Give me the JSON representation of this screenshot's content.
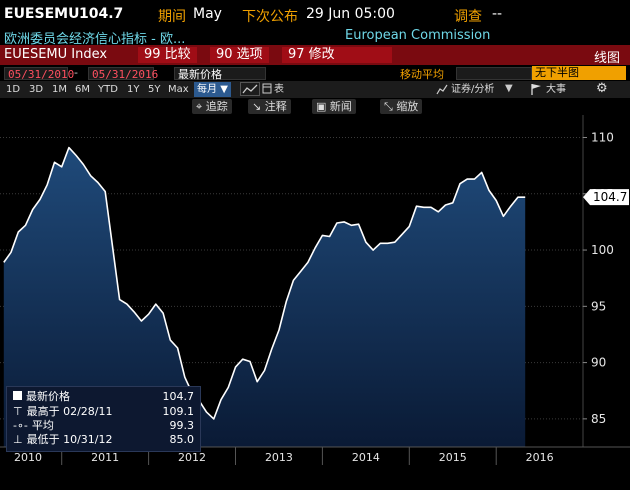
{
  "header": {
    "ticker": "EUESEMU",
    "last_value": "104.7",
    "period_label": "期间",
    "period_value": "May",
    "next_release_label": "下次公布",
    "next_release_value": "29 Jun 05:00",
    "survey_label": "调查",
    "survey_value": "--",
    "description": "欧洲委员会经济信心指标 - 欧...",
    "source": "European Commission"
  },
  "toolbar": {
    "security": "EUESEMU Index",
    "btn_compare": "99 比较",
    "btn_options": "90 选项",
    "btn_edit": "97 修改",
    "chart_type": "线图"
  },
  "range_bar": {
    "start_date": "05/31/2010",
    "end_date": "05/31/2016",
    "price_field": "最新价格",
    "moving_avg": "移动平均",
    "subchart": "无下半图"
  },
  "periods": [
    "1D",
    "3D",
    "1M",
    "6M",
    "YTD",
    "1Y",
    "5Y",
    "Max"
  ],
  "frequency": "每月",
  "table_icon_label": "表",
  "analysis_label": "证券/分析",
  "events_label": "大事",
  "tools": {
    "track": "追踪",
    "annotate": "注释",
    "news": "新闻",
    "zoom": "缩放"
  },
  "colors": {
    "area_top": "#1f4a7a",
    "area_bottom": "#0a1a35",
    "line": "#ffffff",
    "background": "#000000",
    "header_red": "#7a0a10",
    "accent_orange": "#f0a000"
  },
  "legend": {
    "last_label": "最新价格",
    "last_value": "104.7",
    "high_label": "最高于 02/28/11",
    "high_value": "109.1",
    "avg_label": "平均",
    "avg_value": "99.3",
    "low_label": "最低于 10/31/12",
    "low_value": "85.0"
  },
  "chart_data": {
    "type": "area",
    "xlabel": "",
    "ylabel": "",
    "ylim": [
      82.5,
      112
    ],
    "yticks": [
      85,
      90,
      95,
      100,
      105,
      110
    ],
    "last_value_label": "104.7",
    "x_labels": [
      "2010",
      "2011",
      "2012",
      "2013",
      "2014",
      "2015",
      "2016"
    ],
    "x": [
      "2010-05",
      "2010-06",
      "2010-07",
      "2010-08",
      "2010-09",
      "2010-10",
      "2010-11",
      "2010-12",
      "2011-01",
      "2011-02",
      "2011-03",
      "2011-04",
      "2011-05",
      "2011-06",
      "2011-07",
      "2011-08",
      "2011-09",
      "2011-10",
      "2011-11",
      "2011-12",
      "2012-01",
      "2012-02",
      "2012-03",
      "2012-04",
      "2012-05",
      "2012-06",
      "2012-07",
      "2012-08",
      "2012-09",
      "2012-10",
      "2012-11",
      "2012-12",
      "2013-01",
      "2013-02",
      "2013-03",
      "2013-04",
      "2013-05",
      "2013-06",
      "2013-07",
      "2013-08",
      "2013-09",
      "2013-10",
      "2013-11",
      "2013-12",
      "2014-01",
      "2014-02",
      "2014-03",
      "2014-04",
      "2014-05",
      "2014-06",
      "2014-07",
      "2014-08",
      "2014-09",
      "2014-10",
      "2014-11",
      "2014-12",
      "2015-01",
      "2015-02",
      "2015-03",
      "2015-04",
      "2015-05",
      "2015-06",
      "2015-07",
      "2015-08",
      "2015-09",
      "2015-10",
      "2015-11",
      "2015-12",
      "2016-01",
      "2016-02",
      "2016-03",
      "2016-04",
      "2016-05"
    ],
    "values": [
      98.9,
      99.8,
      101.6,
      102.2,
      103.6,
      104.5,
      105.8,
      107.8,
      107.4,
      109.1,
      108.4,
      107.6,
      106.6,
      106.0,
      105.2,
      100.4,
      95.6,
      95.2,
      94.5,
      93.7,
      94.3,
      95.2,
      94.4,
      92.0,
      91.3,
      88.7,
      87.3,
      86.6,
      85.6,
      85.0,
      86.7,
      87.8,
      89.6,
      90.3,
      90.1,
      88.3,
      89.3,
      91.2,
      92.9,
      95.4,
      97.3,
      98.1,
      98.9,
      100.2,
      101.3,
      101.2,
      102.4,
      102.5,
      102.2,
      102.3,
      100.7,
      100.0,
      100.6,
      100.6,
      100.7,
      101.4,
      102.1,
      103.9,
      103.8,
      103.8,
      103.4,
      104.0,
      104.2,
      105.9,
      106.3,
      106.3,
      106.9,
      105.3,
      104.4,
      103.0,
      103.9,
      104.7,
      104.7
    ]
  }
}
